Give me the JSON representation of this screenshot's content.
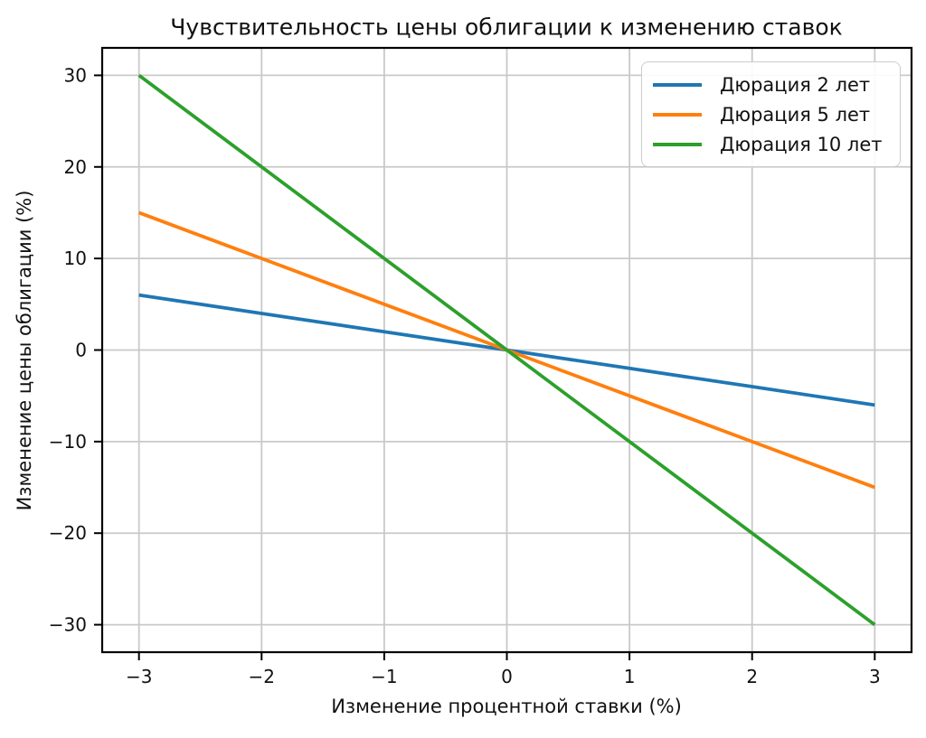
{
  "chart_data": {
    "type": "line",
    "title": "Чувствительность цены облигации к изменению ставок",
    "xlabel": "Изменение процентной ставки (%)",
    "ylabel": "Изменение цены облигации (%)",
    "x": [
      -3,
      -2,
      -1,
      0,
      1,
      2,
      3
    ],
    "series": [
      {
        "name": "Дюрация 2 лет",
        "color": "#1f77b4",
        "values": [
          6,
          4,
          2,
          0,
          -2,
          -4,
          -6
        ]
      },
      {
        "name": "Дюрация 5 лет",
        "color": "#ff7f0e",
        "values": [
          15,
          10,
          5,
          0,
          -5,
          -10,
          -15
        ]
      },
      {
        "name": "Дюрация 10 лет",
        "color": "#2ca02c",
        "values": [
          30,
          20,
          10,
          0,
          -10,
          -20,
          -30
        ]
      }
    ],
    "xticks": [
      -3,
      -2,
      -1,
      0,
      1,
      2,
      3
    ],
    "yticks": [
      -30,
      -20,
      -10,
      0,
      10,
      20,
      30
    ],
    "xlim": [
      -3.3,
      3.3
    ],
    "ylim": [
      -33,
      33
    ],
    "grid": true,
    "legend_position": "upper right"
  },
  "colors": {
    "background": "#ffffff",
    "grid": "#c9c9c9",
    "spine": "#000000",
    "tick_label": "#111111",
    "legend_border": "#cccccc"
  }
}
